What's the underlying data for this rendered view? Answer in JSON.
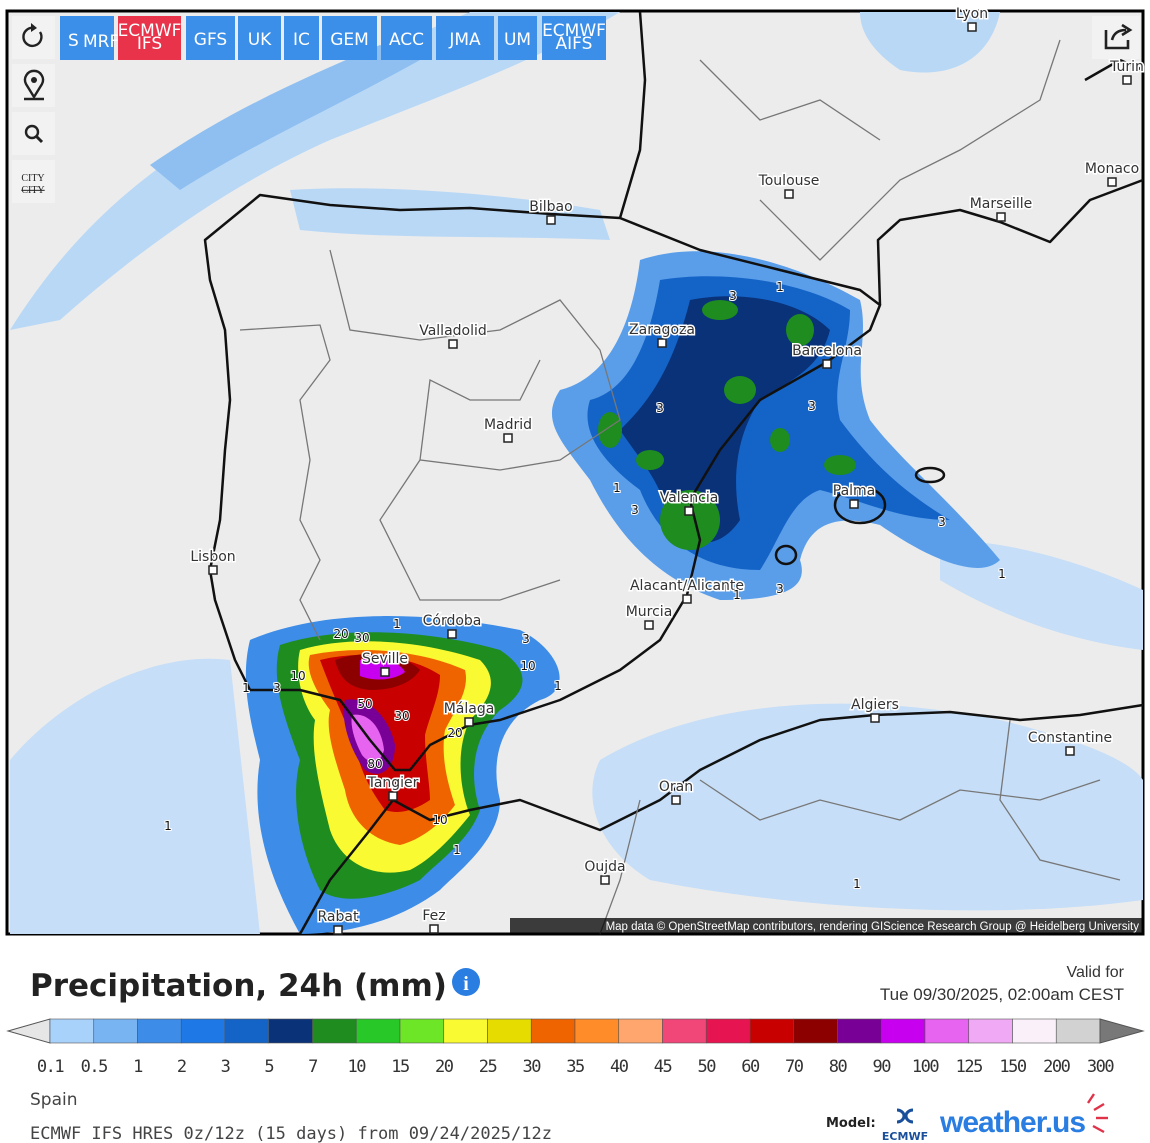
{
  "toolbar": {
    "tools": {
      "city": [
        "CITY",
        "CITY"
      ]
    },
    "models": [
      {
        "label": "S",
        "sub": "MRF"
      },
      {
        "label": "ECMWF",
        "sub": "IFS"
      },
      {
        "label": "GFS"
      },
      {
        "label": "UK"
      },
      {
        "label": "IC"
      },
      {
        "label": "GEM"
      },
      {
        "label": "ACC"
      },
      {
        "label": "JMA"
      },
      {
        "label": "UM"
      },
      {
        "label": "ECMWF",
        "sub": "AIFS"
      }
    ],
    "active_model": 1
  },
  "map": {
    "cities": [
      "Lyon",
      "Turin",
      "Monaco",
      "Toulouse",
      "Marseille",
      "Bilbao",
      "Zaragoza",
      "Barcelona",
      "Valladolid",
      "Madrid",
      "Valencia",
      "Palma",
      "Lisbon",
      "Alacant/Alicante",
      "Murcia",
      "Córdoba",
      "Seville",
      "Málaga",
      "Algiers",
      "Constantine",
      "Oran",
      "Tangier",
      "Oujda",
      "Rabat",
      "Fez"
    ],
    "contour_labels": [
      "1",
      "3",
      "3",
      "1",
      "3",
      "3",
      "3",
      "1",
      "3",
      "1",
      "3",
      "10",
      "1",
      "20",
      "30",
      "1",
      "3",
      "10",
      "50",
      "30",
      "20",
      "80",
      "10",
      "1",
      "1",
      "1",
      "1"
    ],
    "attribution": "Map data © OpenStreetMap contributors, rendering GIScience Research Group @ Heidelberg University"
  },
  "legend": {
    "title": "Precipitation, 24h (mm)",
    "valid_label": "Valid for",
    "valid_time": "Tue 09/30/2025, 02:00am CEST",
    "ticks": [
      "0.1",
      "0.5",
      "1",
      "2",
      "3",
      "5",
      "7",
      "10",
      "15",
      "20",
      "25",
      "30",
      "35",
      "40",
      "45",
      "50",
      "60",
      "70",
      "80",
      "90",
      "100",
      "125",
      "150",
      "200",
      "300"
    ],
    "colors": [
      "#a9d2fa",
      "#78b4f2",
      "#3c8ce8",
      "#1e78e6",
      "#1464c8",
      "#0a3278",
      "#1e8c1e",
      "#28c828",
      "#6ee628",
      "#fafa32",
      "#e6dc00",
      "#f06400",
      "#ff8c28",
      "#ffa56e",
      "#f04678",
      "#e61450",
      "#c80000",
      "#8c0000",
      "#780096",
      "#c800f0",
      "#e664f0",
      "#f0aaf5",
      "#faf0fa",
      "#d2d2d2"
    ],
    "under_color": "#e6e6e6",
    "over_color": "#787878"
  },
  "footer": {
    "region": "Spain",
    "run": "ECMWF IFS HRES 0z/12z (15 days) from 09/24/2025/12z",
    "model_label": "Model:",
    "model_name": "ECMWF",
    "brand": "weather.us"
  }
}
